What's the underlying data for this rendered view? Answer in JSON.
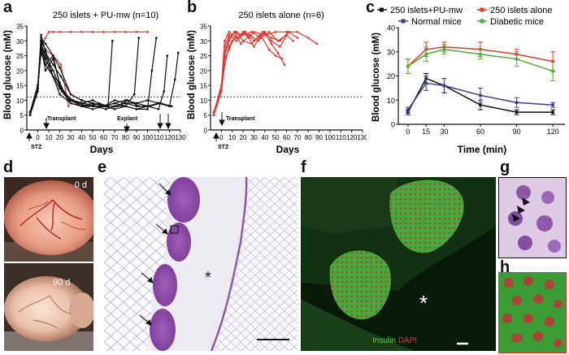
{
  "figure": {
    "panel_letters": [
      "a",
      "b",
      "c",
      "d",
      "e",
      "f",
      "g",
      "h"
    ],
    "colors": {
      "red": "#e8352a",
      "black": "#111111",
      "navy": "#3a3d8f",
      "green": "#4caf35",
      "threshold": "#7a3b1a"
    }
  },
  "panel_a": {
    "title": "250 islets + PU-mw (n=10)",
    "ylabel": "Blood glucose (mM)",
    "xlabel": "Days",
    "stz_label": "STZ",
    "transplant_label": "Transplant",
    "explant_label": "Explant"
  },
  "panel_b": {
    "title": "250 islets alone (n=6)",
    "ylabel": "Blood glucose (mM)",
    "xlabel": "Days",
    "stz_label": "STZ",
    "transplant_label": "Transplant"
  },
  "panel_c": {
    "ylabel": "Blood glucose (mM)",
    "xlabel": "Time (min)",
    "legend": [
      "250 islets+PU-mw",
      "250 islets alone",
      "Normal mice",
      "Diabetic mice"
    ]
  },
  "panel_d": {
    "labels": [
      "0 d",
      "90 d"
    ]
  },
  "panel_f": {
    "stain1": "Insulin",
    "stain2": "DAPI"
  },
  "chart_data": [
    {
      "type": "line",
      "title": "250 islets + PU-mw (n=10)",
      "xlabel": "Days",
      "ylabel": "Blood glucose (mM)",
      "xlim": [
        -10,
        130
      ],
      "ylim": [
        0,
        35
      ],
      "xticks": [
        0,
        10,
        20,
        30,
        40,
        50,
        60,
        70,
        80,
        90,
        100,
        110,
        120,
        130
      ],
      "yticks": [
        0,
        5,
        10,
        15,
        20,
        25,
        30,
        35
      ],
      "threshold": 11.1,
      "series": [
        {
          "color": "#e8352a",
          "x": [
            -7,
            0,
            3,
            7,
            10,
            14,
            20,
            30,
            40,
            50,
            60,
            70,
            80,
            90,
            100
          ],
          "y": [
            5,
            15,
            28,
            31,
            33,
            33,
            33,
            33,
            33,
            33,
            33,
            33,
            33,
            33,
            33
          ]
        },
        {
          "color": "#e8352a",
          "x": [
            -7,
            0,
            3,
            7,
            14,
            21,
            28
          ],
          "y": [
            5,
            14,
            30,
            27,
            25,
            22,
            8
          ]
        },
        {
          "color": "#111111",
          "x": [
            -7,
            0,
            3,
            7,
            12,
            20,
            30,
            40,
            50,
            60,
            70,
            80,
            90,
            100,
            104,
            108
          ],
          "y": [
            6,
            14,
            30,
            27,
            20,
            12,
            9,
            8,
            8,
            8,
            9,
            8,
            7,
            7,
            20,
            31
          ]
        },
        {
          "color": "#111111",
          "x": [
            -7,
            0,
            3,
            7,
            14,
            21,
            30,
            40,
            50,
            60,
            70,
            80,
            88,
            92
          ],
          "y": [
            5,
            14,
            28,
            20,
            24,
            14,
            9,
            8,
            7,
            8,
            8,
            8,
            12,
            31
          ]
        },
        {
          "color": "#111111",
          "x": [
            -7,
            0,
            3,
            7,
            14,
            20,
            28,
            36,
            46,
            56,
            64,
            68
          ],
          "y": [
            5,
            13,
            30,
            22,
            18,
            14,
            10,
            9,
            8,
            9,
            8,
            30
          ]
        },
        {
          "color": "#111111",
          "x": [
            -7,
            0,
            3,
            7,
            14,
            20,
            30,
            40,
            50,
            60,
            70,
            80,
            90,
            100,
            110,
            115,
            118
          ],
          "y": [
            6,
            15,
            26,
            22,
            25,
            15,
            10,
            8,
            9,
            8,
            7,
            8,
            7,
            8,
            7,
            13,
            25
          ]
        },
        {
          "color": "#111111",
          "x": [
            -7,
            0,
            3,
            7,
            14,
            21,
            30,
            40,
            50,
            60,
            70,
            80,
            90,
            100,
            110,
            120,
            125,
            128
          ],
          "y": [
            5,
            14,
            32,
            26,
            22,
            18,
            12,
            10,
            9,
            8,
            8,
            9,
            8,
            8,
            9,
            8,
            17,
            26
          ]
        },
        {
          "color": "#111111",
          "x": [
            -7,
            0,
            3,
            7,
            14,
            22,
            32,
            42,
            52,
            62,
            72,
            82,
            92,
            102,
            112,
            122
          ],
          "y": [
            6,
            15,
            29,
            25,
            20,
            13,
            10,
            9,
            8,
            7,
            8,
            10,
            8,
            8,
            9,
            8
          ]
        },
        {
          "color": "#111111",
          "x": [
            -7,
            0,
            3,
            7,
            14,
            20,
            25,
            30,
            40,
            50,
            60,
            70,
            80,
            90,
            100,
            110
          ],
          "y": [
            5,
            14,
            27,
            24,
            18,
            16,
            12,
            10,
            9,
            10,
            8,
            9,
            10,
            9,
            10,
            9
          ]
        },
        {
          "color": "#111111",
          "x": [
            -7,
            0,
            3,
            7,
            14,
            20,
            30,
            40,
            50,
            60,
            70,
            80,
            90,
            100,
            110,
            120
          ],
          "y": [
            6,
            15,
            31,
            29,
            25,
            21,
            12,
            10,
            9,
            8,
            10,
            9,
            9,
            8,
            9,
            8
          ]
        }
      ]
    },
    {
      "type": "line",
      "title": "250 islets alone (n=6)",
      "xlabel": "Days",
      "ylabel": "Blood glucose (mM)",
      "xlim": [
        -10,
        130
      ],
      "ylim": [
        0,
        35
      ],
      "xticks": [
        0,
        10,
        20,
        30,
        40,
        50,
        60,
        70,
        80,
        90,
        100,
        110,
        120,
        130
      ],
      "yticks": [
        0,
        5,
        10,
        15,
        20,
        25,
        30,
        35
      ],
      "threshold": 11.1,
      "series": [
        {
          "color": "#e8352a",
          "x": [
            -7,
            0,
            3,
            7,
            10,
            14,
            20,
            25,
            30,
            40,
            50,
            60,
            70,
            80,
            88
          ],
          "y": [
            5,
            13,
            22,
            28,
            30,
            31,
            33,
            31,
            33,
            32,
            33,
            33,
            33,
            31,
            29
          ]
        },
        {
          "color": "#e8352a",
          "x": [
            -7,
            0,
            3,
            7,
            12,
            18,
            26,
            34,
            40,
            46,
            52,
            58
          ],
          "y": [
            6,
            14,
            25,
            30,
            33,
            29,
            32,
            30,
            33,
            29,
            26,
            22
          ]
        },
        {
          "color": "#e8352a",
          "x": [
            -7,
            0,
            3,
            7,
            14,
            22,
            30,
            38,
            46,
            54,
            62,
            70
          ],
          "y": [
            5,
            15,
            28,
            32,
            30,
            33,
            28,
            33,
            30,
            28,
            33,
            31
          ]
        },
        {
          "color": "#e8352a",
          "x": [
            -7,
            0,
            3,
            7,
            14,
            20,
            28,
            36,
            44,
            50,
            56
          ],
          "y": [
            6,
            14,
            24,
            27,
            33,
            30,
            29,
            32,
            27,
            25,
            24
          ]
        },
        {
          "color": "#e8352a",
          "x": [
            -7,
            0,
            3,
            7,
            12,
            20,
            28,
            36,
            44,
            52,
            60,
            66
          ],
          "y": [
            5,
            13,
            26,
            31,
            33,
            32,
            33,
            31,
            33,
            30,
            32,
            30
          ]
        },
        {
          "color": "#e8352a",
          "x": [
            -7,
            0,
            3,
            7,
            14,
            22,
            30,
            38,
            46,
            54,
            62
          ],
          "y": [
            6,
            15,
            30,
            33,
            31,
            33,
            30,
            33,
            31,
            30,
            33
          ]
        }
      ]
    },
    {
      "type": "line",
      "xlabel": "Time (min)",
      "ylabel": "Blood glucose (mM)",
      "xlim": [
        -8,
        130
      ],
      "ylim": [
        0,
        40
      ],
      "xticks": [
        0,
        15,
        30,
        60,
        90,
        120
      ],
      "yticks": [
        0,
        10,
        20,
        30,
        40
      ],
      "legend": "top",
      "series": [
        {
          "name": "250 islets+PU-mw",
          "color": "#111111",
          "x": [
            0,
            15,
            30,
            60,
            90,
            120
          ],
          "y": [
            5,
            19,
            16,
            8,
            5,
            5
          ],
          "err": [
            1,
            2,
            3,
            2,
            1,
            1
          ]
        },
        {
          "name": "250 islets alone",
          "color": "#e8352a",
          "x": [
            0,
            15,
            30,
            60,
            90,
            120
          ],
          "y": [
            24,
            31,
            32,
            31,
            29,
            26
          ],
          "err": [
            3,
            3,
            2,
            3,
            2,
            4
          ]
        },
        {
          "name": "Normal mice",
          "color": "#3a3d8f",
          "x": [
            0,
            15,
            30,
            60,
            90,
            120
          ],
          "y": [
            6,
            17,
            16,
            12,
            9,
            8
          ],
          "err": [
            1,
            3,
            3,
            3,
            2,
            1
          ]
        },
        {
          "name": "Diabetic mice",
          "color": "#4caf35",
          "x": [
            0,
            15,
            30,
            60,
            90,
            120
          ],
          "y": [
            24,
            29,
            31,
            29,
            27,
            22
          ],
          "err": [
            3,
            3,
            2,
            2,
            3,
            4
          ]
        }
      ]
    }
  ]
}
